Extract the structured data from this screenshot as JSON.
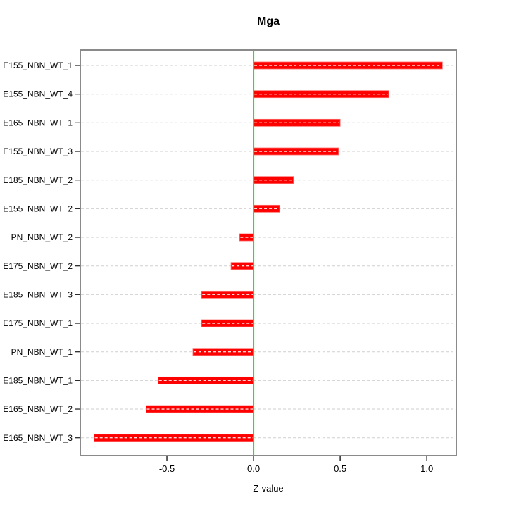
{
  "chart_data": {
    "type": "bar",
    "orientation": "horizontal",
    "title": "Mga",
    "xlabel": "Z-value",
    "ylabel": "",
    "categories": [
      "E155_NBN_WT_1",
      "E155_NBN_WT_4",
      "E165_NBN_WT_1",
      "E155_NBN_WT_3",
      "E185_NBN_WT_2",
      "E155_NBN_WT_2",
      "PN_NBN_WT_2",
      "E175_NBN_WT_2",
      "E185_NBN_WT_3",
      "E175_NBN_WT_1",
      "PN_NBN_WT_1",
      "E185_NBN_WT_1",
      "E165_NBN_WT_2",
      "E165_NBN_WT_3"
    ],
    "values": [
      1.09,
      0.78,
      0.5,
      0.49,
      0.23,
      0.15,
      -0.08,
      -0.13,
      -0.3,
      -0.3,
      -0.35,
      -0.55,
      -0.62,
      -0.92
    ],
    "xlim": [
      -1.0,
      1.17
    ],
    "xticks": [
      -0.5,
      0.0,
      0.5,
      1.0
    ],
    "xtick_labels": [
      "-0.5",
      "0.0",
      "0.5",
      "1.0"
    ],
    "zero_reference_line": 0.0,
    "grid": "dashed horizontal line per category",
    "legend": "none",
    "colors": {
      "bar": "#ff0000",
      "bar_centerline": "#ffffff",
      "zero_line": "#00ee00",
      "grid": "#d6d6d6",
      "box": "#8a8a8a",
      "axis": "#2b2b2b",
      "text": "#000000",
      "background": "#ffffff"
    }
  }
}
